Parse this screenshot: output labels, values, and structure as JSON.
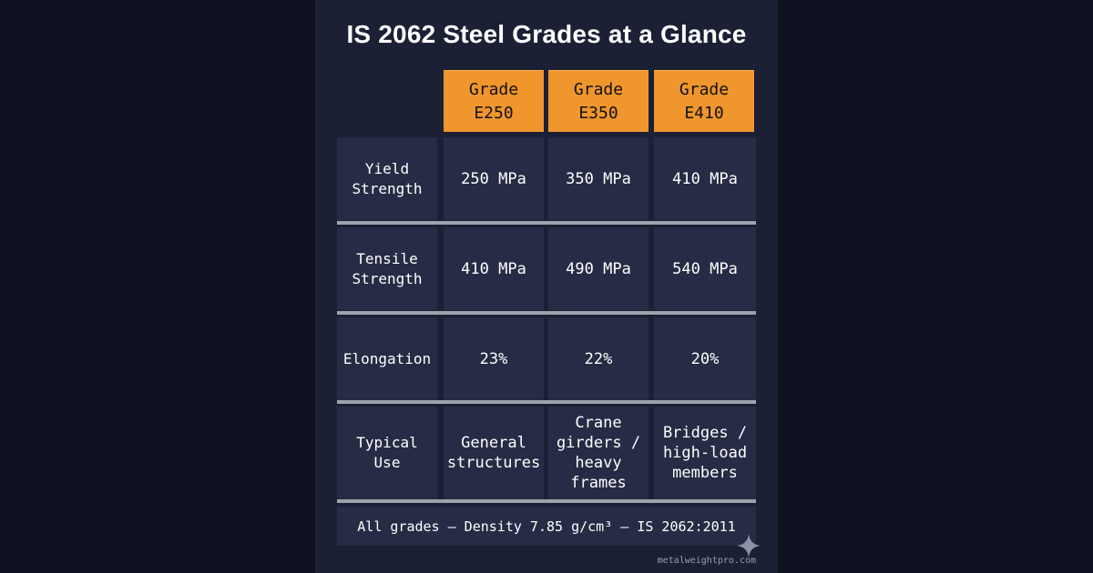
{
  "title": "IS 2062 Steel Grades at a Glance",
  "header": [
    "Grade E250",
    "Grade E350",
    "Grade E410"
  ],
  "rows": [
    {
      "label": "Yield Strength",
      "values": [
        "250 MPa",
        "350 MPa",
        "410 MPa"
      ]
    },
    {
      "label": "Tensile Strength",
      "values": [
        "410 MPa",
        "490 MPa",
        "540 MPa"
      ]
    },
    {
      "label": "Elongation",
      "values": [
        "23%",
        "22%",
        "20%"
      ]
    },
    {
      "label": "Typical Use",
      "values": [
        "General structures",
        "Crane girders / heavy frames",
        "Bridges / high-load members"
      ]
    }
  ],
  "footer": "All grades — Density 7.85 g/cm³ — IS 2062:2011",
  "watermark": "metalweightpro.com",
  "colors": {
    "background": "#0e1220",
    "card": "#1b2035",
    "cell": "#262c45",
    "header_accent": "#f0962d",
    "divider": "#9ea2ad"
  }
}
